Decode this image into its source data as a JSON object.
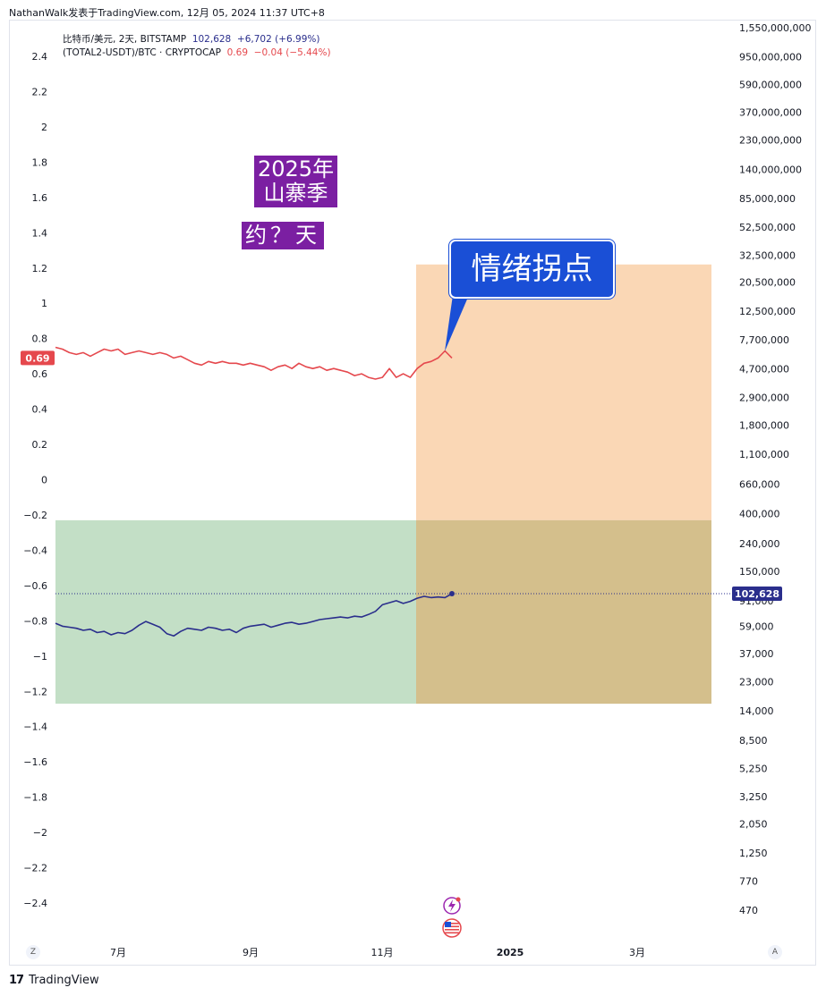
{
  "caption": "NathanWalk发表于TradingView.com, 12月 05, 2024 11:37 UTC+8",
  "legend": {
    "symbol1": "比特币/美元, 2天, BITSTAMP",
    "value1": "102,628",
    "change1": "+6,702 (+6.99%)",
    "symbol2": "(TOTAL2-USDT)/BTC · CRYPTOCAP",
    "value2": "0.69",
    "change2": "−0.04 (−5.44%)"
  },
  "annotations": {
    "label_2025": "2025年\n山寨季",
    "label_days": "约？天",
    "callout": "情绪拐点"
  },
  "footer": {
    "brand": "TradingView"
  },
  "buttons": {
    "z": "Z",
    "a": "A"
  },
  "colors": {
    "btc_line": "#2a2e8c",
    "ratio_line": "#e5484d",
    "green_zone": "#c3dfc6",
    "orange_zone": "#fad7b5",
    "overlap_zone": "#d4bf8c",
    "label_bg": "#7b1fa2",
    "callout_bg": "#1a4fd6"
  },
  "icons": [
    "lightning-event-icon",
    "us-flag-event-icon"
  ],
  "chart_data": {
    "type": "line",
    "x_ticks": [
      "7月",
      "9月",
      "11月",
      "2025",
      "3月"
    ],
    "left_axis": {
      "ticks": [
        "2.4",
        "2.2",
        "2",
        "1.8",
        "1.6",
        "1.4",
        "1.2",
        "1",
        "0.8",
        "0.6",
        "0.4",
        "0.2",
        "0",
        "-0.2",
        "-0.4",
        "-0.6",
        "-0.8",
        "-1",
        "-1.2",
        "-1.4",
        "-1.6",
        "-1.8",
        "-2",
        "-2.2",
        "-2.4"
      ],
      "range": [
        -2.4,
        2.4
      ],
      "current_label": "0.69"
    },
    "right_axis": {
      "scale": "log",
      "ticks": [
        "1,550,000,000",
        "950,000,000",
        "590,000,000",
        "370,000,000",
        "230,000,000",
        "140,000,000",
        "85,000,000",
        "52,500,000",
        "32,500,000",
        "20,500,000",
        "12,500,000",
        "7,700,000",
        "4,700,000",
        "2,900,000",
        "1,800,000",
        "1,100,000",
        "660,000",
        "400,000",
        "240,000",
        "150,000",
        "91,000",
        "59,000",
        "37,000",
        "23,000",
        "14,000",
        "8,500",
        "5,250",
        "3,250",
        "2,050",
        "1,250",
        "770",
        "470"
      ],
      "current_label": "102,628"
    },
    "series": [
      {
        "name": "(TOTAL2-USDT)/BTC",
        "axis": "left",
        "values": [
          0.75,
          0.74,
          0.72,
          0.71,
          0.72,
          0.7,
          0.72,
          0.74,
          0.73,
          0.74,
          0.71,
          0.72,
          0.73,
          0.72,
          0.71,
          0.72,
          0.71,
          0.69,
          0.7,
          0.68,
          0.66,
          0.65,
          0.67,
          0.66,
          0.67,
          0.66,
          0.66,
          0.65,
          0.66,
          0.65,
          0.64,
          0.62,
          0.64,
          0.65,
          0.63,
          0.66,
          0.64,
          0.63,
          0.64,
          0.62,
          0.63,
          0.62,
          0.61,
          0.59,
          0.6,
          0.58,
          0.57,
          0.58,
          0.63,
          0.58,
          0.6,
          0.58,
          0.63,
          0.66,
          0.67,
          0.69,
          0.73,
          0.69
        ]
      },
      {
        "name": "比特币/美元",
        "axis": "right",
        "values": [
          62000,
          59000,
          58000,
          57000,
          55000,
          56000,
          53000,
          54000,
          51000,
          53000,
          52000,
          55000,
          60000,
          64000,
          61000,
          58000,
          52000,
          50000,
          54000,
          57000,
          56000,
          55000,
          58000,
          57000,
          55000,
          56000,
          53000,
          57000,
          59000,
          60000,
          61000,
          58000,
          60000,
          62000,
          63000,
          61000,
          62000,
          64000,
          66000,
          67000,
          68000,
          69000,
          68000,
          70000,
          69000,
          72000,
          76000,
          85000,
          88000,
          91000,
          87000,
          90000,
          95000,
          98000,
          96000,
          97000,
          96000,
          102628
        ]
      }
    ],
    "zones": [
      {
        "name": "green",
        "y_range_left": [
          -1.27,
          -0.23
        ],
        "x_range": [
          "start",
          "3月+"
        ]
      },
      {
        "name": "orange",
        "y_range_left": [
          -1.27,
          1.22
        ],
        "x_range": [
          "11月+",
          "3月+"
        ]
      }
    ]
  }
}
